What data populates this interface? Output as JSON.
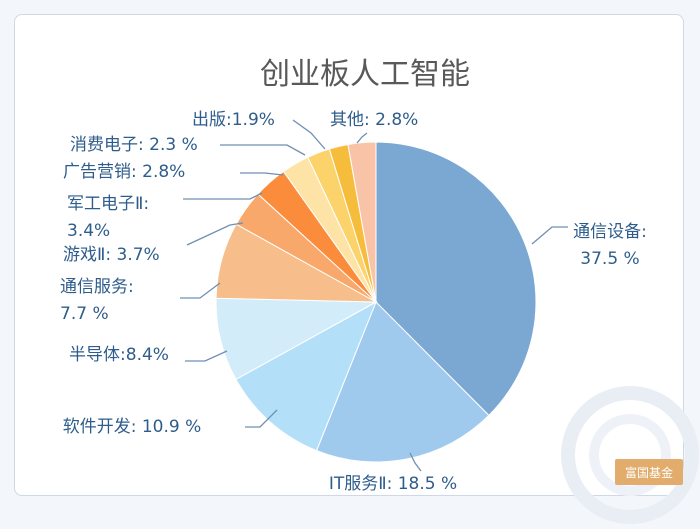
{
  "chart_data": {
    "type": "pie",
    "title": "创业板人工智能",
    "slices": [
      {
        "name": "通信设备",
        "value": 37.5,
        "label": [
          "通信设备:",
          "37.5 %"
        ],
        "color": "#7aa8d2"
      },
      {
        "name": "IT服务Ⅱ",
        "value": 18.5,
        "label": [
          "IT服务Ⅱ: 18.5 %"
        ],
        "color": "#9fcaee"
      },
      {
        "name": "软件开发",
        "value": 10.9,
        "label": [
          "软件开发: 10.9 %"
        ],
        "color": "#b3e0f8"
      },
      {
        "name": "半导体",
        "value": 8.4,
        "label": [
          "半导体:8.4%"
        ],
        "color": "#d3ecfa"
      },
      {
        "name": "通信服务",
        "value": 7.7,
        "label": [
          "通信服务:",
          "7.7 %"
        ],
        "color": "#f7bd8a"
      },
      {
        "name": "游戏Ⅱ",
        "value": 3.7,
        "label": [
          "游戏Ⅱ: 3.7%"
        ],
        "color": "#f9a86b"
      },
      {
        "name": "军工电子Ⅱ",
        "value": 3.4,
        "label": [
          "军工电子Ⅱ:",
          "3.4%"
        ],
        "color": "#fb8c3c"
      },
      {
        "name": "广告营销",
        "value": 2.8,
        "label": [
          "广告营销: 2.8%"
        ],
        "color": "#fde4a6"
      },
      {
        "name": "消费电子",
        "value": 2.3,
        "label": [
          "消费电子: 2.3 %"
        ],
        "color": "#fcd26b"
      },
      {
        "name": "出版",
        "value": 1.9,
        "label": [
          "出版:1.9%"
        ],
        "color": "#f6bd3c"
      },
      {
        "name": "其他",
        "value": 2.8,
        "label": [
          "其他: 2.8%"
        ],
        "color": "#f9c3a8"
      }
    ]
  },
  "watermark": {
    "brand": "富国基金"
  }
}
